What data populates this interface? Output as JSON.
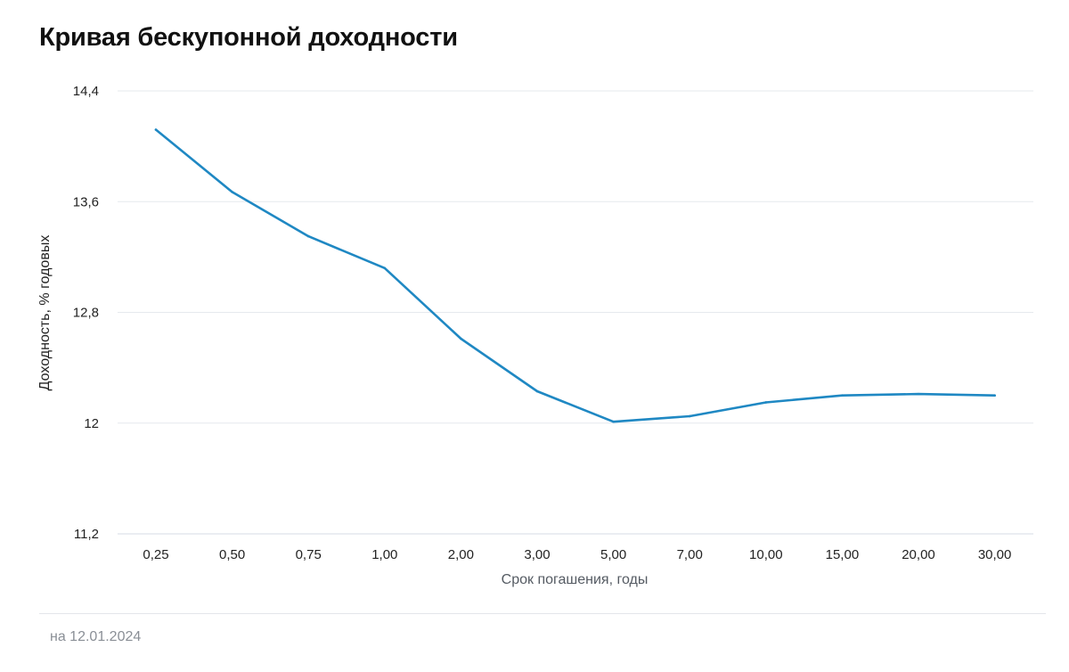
{
  "title": "Кривая бескупонной доходности",
  "footer": {
    "date_note": "на 12.01.2024"
  },
  "colors": {
    "line": "#1f88c3",
    "grid": "#e6e9ee",
    "axis_title_x": "#555b63",
    "axis_title_y": "#222222"
  },
  "chart_data": {
    "type": "line",
    "title": "Кривая бескупонной доходности",
    "xlabel": "Срок погашения, годы",
    "ylabel": "Доходность, % годовых",
    "categories": [
      "0,25",
      "0,50",
      "0,75",
      "1,00",
      "2,00",
      "3,00",
      "5,00",
      "7,00",
      "10,00",
      "15,00",
      "20,00",
      "30,00"
    ],
    "series": [
      {
        "values": [
          14.12,
          13.67,
          13.35,
          13.12,
          12.61,
          12.23,
          12.01,
          12.05,
          12.15,
          12.2,
          12.21,
          12.2
        ]
      }
    ],
    "ylim": [
      11.2,
      14.4
    ],
    "yticks": [
      11.2,
      12,
      12.8,
      13.6,
      14.4
    ],
    "ytick_labels": [
      "11,2",
      "12",
      "12,8",
      "13,6",
      "14,4"
    ],
    "grid": "horizontal",
    "legend": "none"
  }
}
